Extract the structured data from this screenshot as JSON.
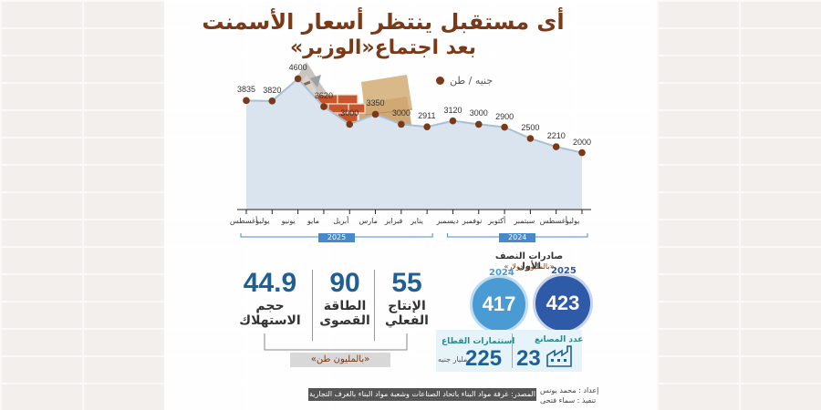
{
  "title": {
    "line1": "أى مستقبل ينتظر أسعار الأسمنت",
    "line2": "بعد اجتماع«الوزير»"
  },
  "unit_legend": "جنيه / طن",
  "chart_data": {
    "type": "area",
    "title": "أى مستقبل ينتظر أسعار الأسمنت",
    "ylabel": "جنيه / طن",
    "ylim": [
      0,
      5000
    ],
    "categories": [
      "يوليو",
      "أغسطس",
      "سبتمبر",
      "أكتوبر",
      "نوفمبر",
      "ديسمبر",
      "يناير",
      "فبراير",
      "مارس",
      "أبريل",
      "مايو",
      "يونيو",
      "يوليو",
      "أغسطس"
    ],
    "values": [
      2000,
      2210,
      2500,
      2900,
      3000,
      3120,
      2911,
      3000,
      3350,
      3000,
      3620,
      4600,
      3820,
      3835
    ],
    "year_groups": [
      {
        "label": "2024",
        "start": 0,
        "end": 5
      },
      {
        "label": "2025",
        "start": 6,
        "end": 13
      }
    ],
    "colors": {
      "fill": "#d9e4ee",
      "line": "#a9bfd3",
      "dot": "#7a3a18"
    }
  },
  "production": {
    "stats": [
      {
        "value": "55",
        "label1": "الإنتاج",
        "label2": "الفعلي"
      },
      {
        "value": "90",
        "label1": "الطاقة",
        "label2": "القصوى"
      },
      {
        "value": "44.9",
        "label1": "حجم",
        "label2": "الاستهلاك"
      }
    ],
    "unit": "«بالمليون طن»"
  },
  "exports": {
    "heading": "صادرات النصف الأول",
    "subheading": "«بالمليون دولار»",
    "items": [
      {
        "year": "2025",
        "value": "423"
      },
      {
        "year": "2024",
        "value": "417"
      }
    ]
  },
  "factories": {
    "label": "عدد المصانع",
    "value": "23"
  },
  "investments": {
    "label": "استثمارات القطاع",
    "value": "225",
    "unit": "مليار جنيه"
  },
  "source": "المصدر: غرفة مواد البناء باتحاد الصناعات وشعبة مواد البناء بالغرف التجارية",
  "credits": {
    "prepared": "إعداد : محمد يونس",
    "design": "تنفيذ : سماء فتحى"
  }
}
